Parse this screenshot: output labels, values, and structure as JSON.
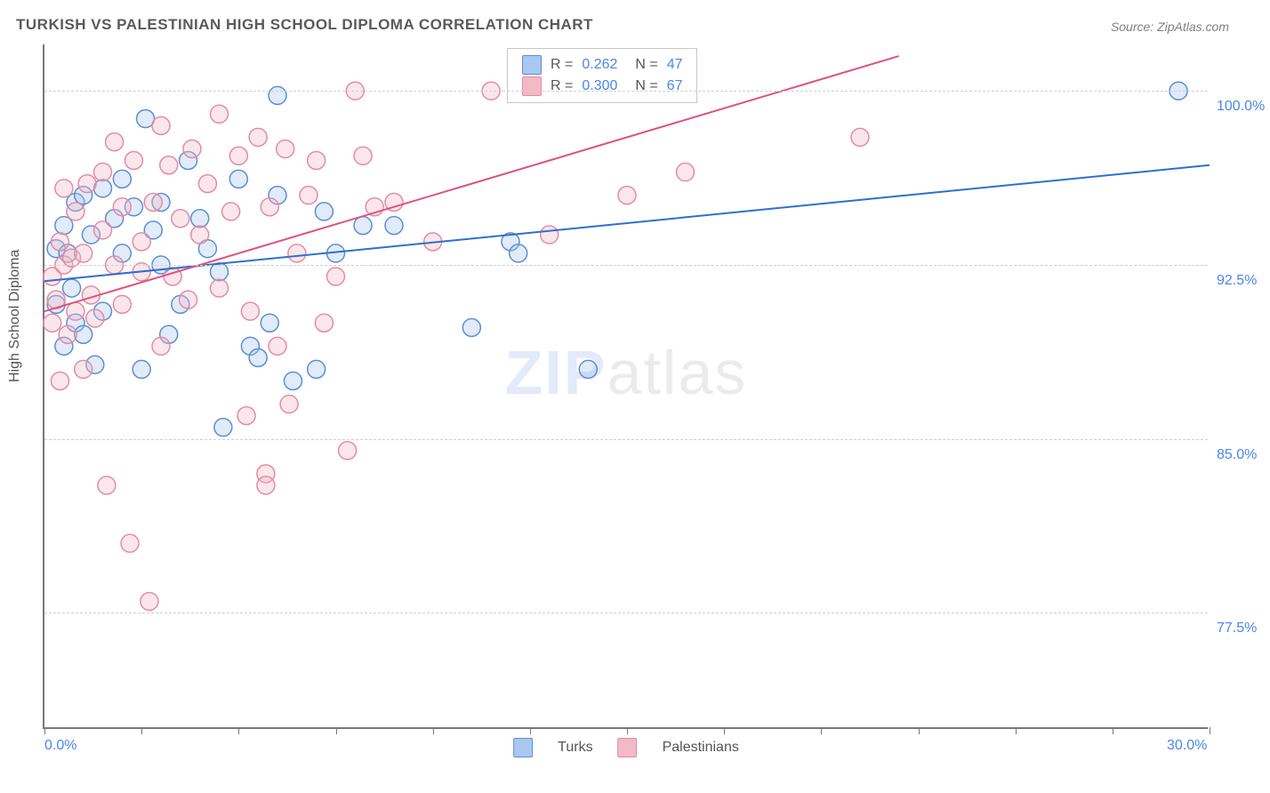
{
  "title": "TURKISH VS PALESTINIAN HIGH SCHOOL DIPLOMA CORRELATION CHART",
  "source": "Source: ZipAtlas.com",
  "ylabel": "High School Diploma",
  "watermark": {
    "zip": "ZIP",
    "atlas": "atlas"
  },
  "chart": {
    "type": "scatter",
    "background_color": "#ffffff",
    "grid_color": "#d0d0d0",
    "axis_color": "#777777",
    "axis_label_color": "#4a86e8",
    "title_color": "#5a5a5a",
    "title_fontsize": 17,
    "label_fontsize": 16,
    "xlim": [
      0,
      30
    ],
    "ylim": [
      72.5,
      102
    ],
    "x_tick_step": 2.5,
    "x_tick_labels": {
      "0": "0.0%",
      "30": "30.0%"
    },
    "y_ticks": [
      77.5,
      85.0,
      92.5,
      100.0
    ],
    "y_tick_labels": [
      "77.5%",
      "85.0%",
      "92.5%",
      "100.0%"
    ],
    "marker_radius": 10,
    "marker_stroke_width": 1.5,
    "marker_fill_opacity": 0.35,
    "line_width": 2,
    "series": [
      {
        "name": "Turks",
        "label": "Turks",
        "color_fill": "#a9c7ef",
        "color_stroke": "#5b8ed6",
        "R": "0.262",
        "N": "47",
        "trend": {
          "x1": 0,
          "y1": 91.8,
          "x2": 30,
          "y2": 96.8,
          "color": "#2f6fd0"
        },
        "points": [
          [
            0.3,
            93.2
          ],
          [
            0.3,
            90.8
          ],
          [
            0.5,
            94.2
          ],
          [
            0.5,
            89.0
          ],
          [
            0.6,
            93.0
          ],
          [
            0.7,
            91.5
          ],
          [
            0.8,
            95.2
          ],
          [
            0.8,
            90.0
          ],
          [
            1.0,
            89.5
          ],
          [
            1.0,
            95.5
          ],
          [
            1.2,
            93.8
          ],
          [
            1.3,
            88.2
          ],
          [
            1.5,
            95.8
          ],
          [
            1.5,
            90.5
          ],
          [
            1.8,
            94.5
          ],
          [
            2.0,
            96.2
          ],
          [
            2.0,
            93.0
          ],
          [
            2.3,
            95.0
          ],
          [
            2.5,
            88.0
          ],
          [
            2.6,
            98.8
          ],
          [
            2.8,
            94.0
          ],
          [
            3.0,
            92.5
          ],
          [
            3.0,
            95.2
          ],
          [
            3.2,
            89.5
          ],
          [
            3.5,
            90.8
          ],
          [
            3.7,
            97.0
          ],
          [
            4.0,
            94.5
          ],
          [
            4.2,
            93.2
          ],
          [
            4.5,
            92.2
          ],
          [
            4.6,
            85.5
          ],
          [
            5.0,
            96.2
          ],
          [
            5.3,
            89.0
          ],
          [
            5.5,
            88.5
          ],
          [
            5.8,
            90.0
          ],
          [
            6.0,
            99.8
          ],
          [
            6.0,
            95.5
          ],
          [
            6.4,
            87.5
          ],
          [
            7.0,
            88.0
          ],
          [
            7.2,
            94.8
          ],
          [
            7.5,
            93.0
          ],
          [
            8.2,
            94.2
          ],
          [
            9.0,
            94.2
          ],
          [
            11.0,
            89.8
          ],
          [
            12.0,
            93.5
          ],
          [
            12.2,
            93.0
          ],
          [
            14.0,
            88.0
          ],
          [
            29.2,
            100.0
          ]
        ]
      },
      {
        "name": "Palestinians",
        "label": "Palestinians",
        "color_fill": "#f3b9c6",
        "color_stroke": "#e58ba3",
        "R": "0.300",
        "N": "67",
        "trend": {
          "x1": 0,
          "y1": 90.5,
          "x2": 22,
          "y2": 101.5,
          "color": "#e0527a"
        },
        "points": [
          [
            0.2,
            92.0
          ],
          [
            0.2,
            90.0
          ],
          [
            0.3,
            91.0
          ],
          [
            0.4,
            93.5
          ],
          [
            0.4,
            87.5
          ],
          [
            0.5,
            95.8
          ],
          [
            0.5,
            92.5
          ],
          [
            0.6,
            89.5
          ],
          [
            0.7,
            92.8
          ],
          [
            0.8,
            94.8
          ],
          [
            0.8,
            90.5
          ],
          [
            1.0,
            93.0
          ],
          [
            1.0,
            88.0
          ],
          [
            1.1,
            96.0
          ],
          [
            1.2,
            91.2
          ],
          [
            1.3,
            90.2
          ],
          [
            1.5,
            94.0
          ],
          [
            1.5,
            96.5
          ],
          [
            1.6,
            83.0
          ],
          [
            1.8,
            97.8
          ],
          [
            1.8,
            92.5
          ],
          [
            2.0,
            90.8
          ],
          [
            2.0,
            95.0
          ],
          [
            2.2,
            80.5
          ],
          [
            2.3,
            97.0
          ],
          [
            2.5,
            93.5
          ],
          [
            2.5,
            92.2
          ],
          [
            2.7,
            78.0
          ],
          [
            2.8,
            95.2
          ],
          [
            3.0,
            98.5
          ],
          [
            3.0,
            89.0
          ],
          [
            3.2,
            96.8
          ],
          [
            3.3,
            92.0
          ],
          [
            3.5,
            94.5
          ],
          [
            3.7,
            91.0
          ],
          [
            3.8,
            97.5
          ],
          [
            4.0,
            93.8
          ],
          [
            4.2,
            96.0
          ],
          [
            4.5,
            99.0
          ],
          [
            4.5,
            91.5
          ],
          [
            4.8,
            94.8
          ],
          [
            5.0,
            97.2
          ],
          [
            5.2,
            86.0
          ],
          [
            5.3,
            90.5
          ],
          [
            5.5,
            98.0
          ],
          [
            5.7,
            83.5
          ],
          [
            5.7,
            83.0
          ],
          [
            5.8,
            95.0
          ],
          [
            6.0,
            89.0
          ],
          [
            6.2,
            97.5
          ],
          [
            6.3,
            86.5
          ],
          [
            6.5,
            93.0
          ],
          [
            6.8,
            95.5
          ],
          [
            7.0,
            97.0
          ],
          [
            7.2,
            90.0
          ],
          [
            7.5,
            92.0
          ],
          [
            7.8,
            84.5
          ],
          [
            8.0,
            100.0
          ],
          [
            8.2,
            97.2
          ],
          [
            8.5,
            95.0
          ],
          [
            9.0,
            95.2
          ],
          [
            10.0,
            93.5
          ],
          [
            11.5,
            100.0
          ],
          [
            13.0,
            93.8
          ],
          [
            15.0,
            95.5
          ],
          [
            16.5,
            96.5
          ],
          [
            21.0,
            98.0
          ]
        ]
      }
    ]
  },
  "legend_top": [
    {
      "swatch_fill": "#a9c7ef",
      "swatch_stroke": "#5b8ed6",
      "r_label": "R =",
      "r_val": "0.262",
      "n_label": "N =",
      "n_val": "47"
    },
    {
      "swatch_fill": "#f3b9c6",
      "swatch_stroke": "#e58ba3",
      "r_label": "R =",
      "r_val": "0.300",
      "n_label": "N =",
      "n_val": "67"
    }
  ],
  "legend_bottom": [
    {
      "swatch_fill": "#a9c7ef",
      "swatch_stroke": "#5b8ed6",
      "label": "Turks"
    },
    {
      "swatch_fill": "#f3b9c6",
      "swatch_stroke": "#e58ba3",
      "label": "Palestinians"
    }
  ]
}
